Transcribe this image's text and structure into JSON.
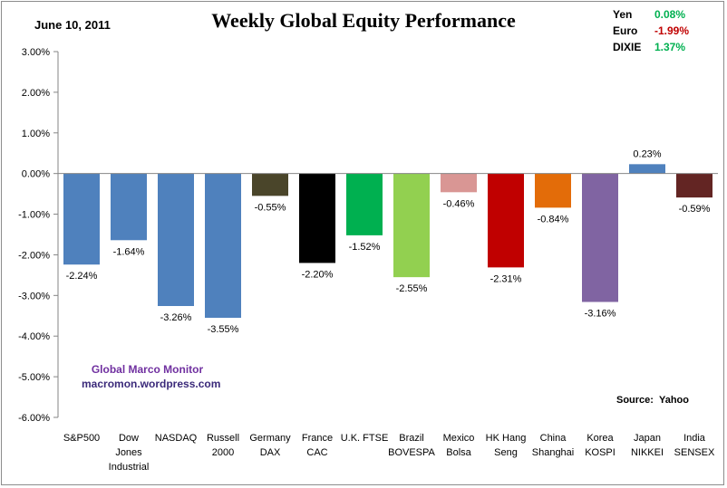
{
  "header": {
    "date": "June 10, 2011",
    "title": "Weekly Global Equity Performance"
  },
  "fx": [
    {
      "name": "Yen",
      "value": "0.08%",
      "color": "#00b050"
    },
    {
      "name": "Euro",
      "value": "-1.99%",
      "color": "#c00000"
    },
    {
      "name": "DIXIE",
      "value": "1.37%",
      "color": "#00b050"
    }
  ],
  "watermark": {
    "line1": "Global Marco Monitor",
    "line2": "macromon.wordpress.com"
  },
  "source": {
    "label": "Source:",
    "name": "Yahoo"
  },
  "chart_data": {
    "type": "bar",
    "title": "Weekly Global Equity Performance",
    "xlabel": "",
    "ylabel": "",
    "ylim": [
      -6,
      3
    ],
    "yticks": [
      "3.00%",
      "2.00%",
      "1.00%",
      "0.00%",
      "-1.00%",
      "-2.00%",
      "-3.00%",
      "-4.00%",
      "-5.00%",
      "-6.00%"
    ],
    "grid": false,
    "legend": "none",
    "categories": [
      [
        "S&P500"
      ],
      [
        "Dow",
        "Jones",
        "Industrial"
      ],
      [
        "NASDAQ"
      ],
      [
        "Russell",
        "2000"
      ],
      [
        "Germany",
        "DAX"
      ],
      [
        "France",
        "CAC"
      ],
      [
        "U.K. FTSE"
      ],
      [
        "Brazil",
        "BOVESPA"
      ],
      [
        "Mexico",
        "Bolsa"
      ],
      [
        "HK Hang",
        "Seng"
      ],
      [
        "China",
        "Shanghai"
      ],
      [
        "Korea",
        "KOSPI"
      ],
      [
        "Japan",
        "NIKKEI"
      ],
      [
        "India",
        "SENSEX"
      ]
    ],
    "values": [
      -2.24,
      -1.64,
      -3.26,
      -3.55,
      -0.55,
      -2.2,
      -1.52,
      -2.55,
      -0.46,
      -2.31,
      -0.84,
      -3.16,
      0.23,
      -0.59
    ],
    "data_labels": [
      "-2.24%",
      "-1.64%",
      "-3.26%",
      "-3.55%",
      "-0.55%",
      "-2.20%",
      "-1.52%",
      "-2.55%",
      "-0.46%",
      "-2.31%",
      "-0.84%",
      "-3.16%",
      "0.23%",
      "-0.59%"
    ],
    "colors": [
      "#4f81bd",
      "#4f81bd",
      "#4f81bd",
      "#4f81bd",
      "#4a452a",
      "#000000",
      "#00b050",
      "#92d050",
      "#d99694",
      "#c00000",
      "#e36c09",
      "#8064a2",
      "#4f81bd",
      "#632523"
    ]
  }
}
